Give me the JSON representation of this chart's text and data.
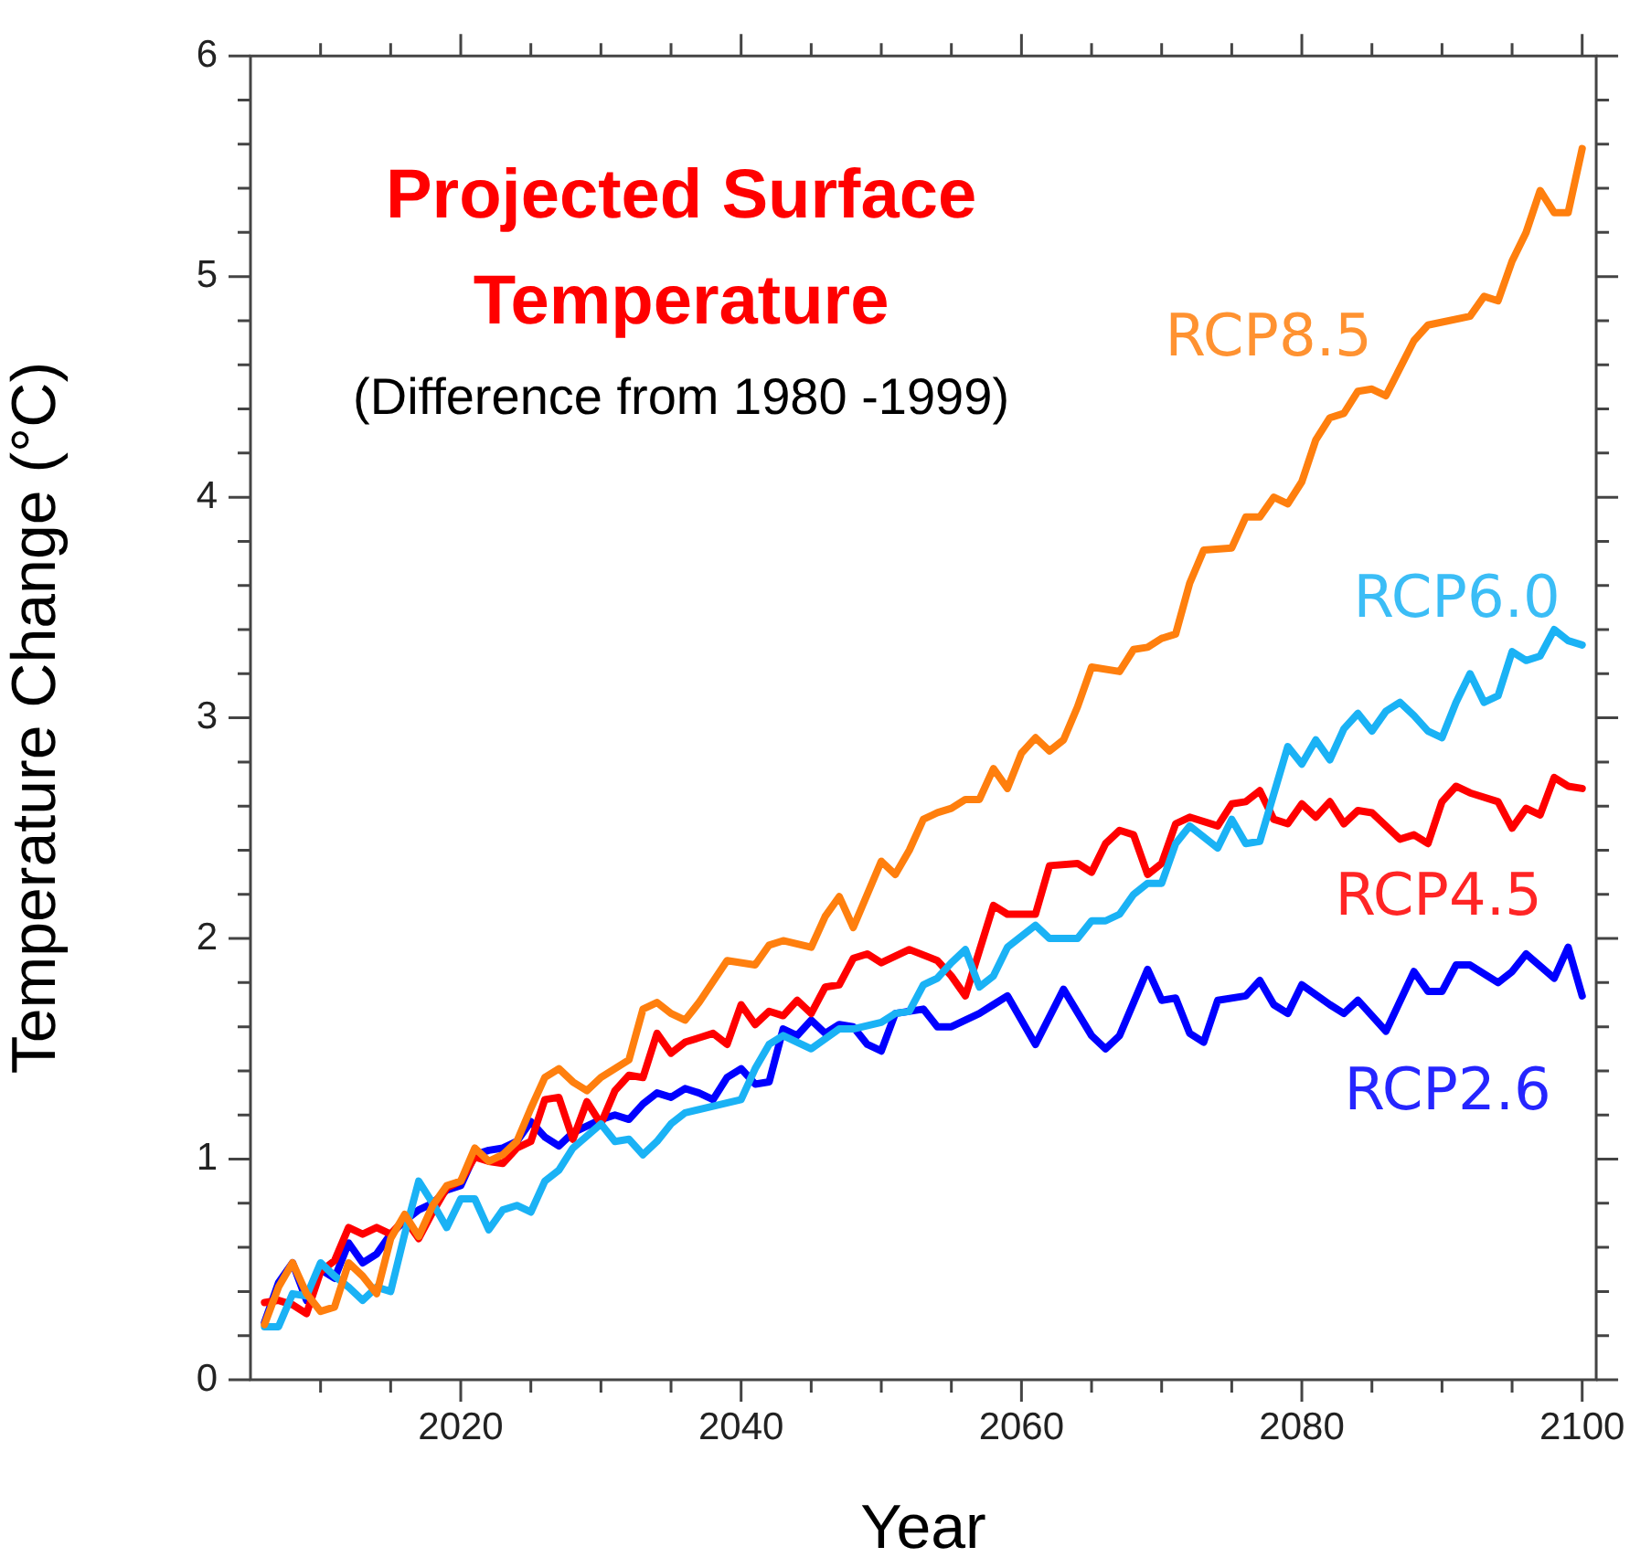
{
  "chart_data": {
    "type": "line",
    "title": "Projected Surface Temperature",
    "subtitle": "(Difference from 1980 -1999)",
    "xlabel": "Year",
    "ylabel": "Temperature Change (°C)",
    "xlim": [
      2005,
      2101
    ],
    "ylim": [
      0,
      6
    ],
    "xticks": [
      {
        "value": 2010,
        "label": null
      },
      {
        "value": 2015,
        "label": null
      },
      2020,
      {
        "value": 2025,
        "label": null
      },
      {
        "value": 2030,
        "label": null
      },
      {
        "value": 2035,
        "label": null
      },
      2040,
      {
        "value": 2045,
        "label": null
      },
      {
        "value": 2050,
        "label": null
      },
      {
        "value": 2055,
        "label": null
      },
      2060,
      {
        "value": 2065,
        "label": null
      },
      {
        "value": 2070,
        "label": null
      },
      {
        "value": 2075,
        "label": null
      },
      2080,
      {
        "value": 2085,
        "label": null
      },
      {
        "value": 2090,
        "label": null
      },
      {
        "value": 2095,
        "label": null
      },
      2100
    ],
    "yticks": [
      0,
      {
        "value": 0.2,
        "label": null
      },
      {
        "value": 0.4,
        "label": null
      },
      {
        "value": 0.6,
        "label": null
      },
      {
        "value": 0.8,
        "label": null
      },
      1,
      {
        "value": 1.2,
        "label": null
      },
      {
        "value": 1.4,
        "label": null
      },
      {
        "value": 1.6,
        "label": null
      },
      {
        "value": 1.8,
        "label": null
      },
      2,
      {
        "value": 2.2,
        "label": null
      },
      {
        "value": 2.4,
        "label": null
      },
      {
        "value": 2.6,
        "label": null
      },
      {
        "value": 2.8,
        "label": null
      },
      3,
      {
        "value": 3.2,
        "label": null
      },
      {
        "value": 3.4,
        "label": null
      },
      {
        "value": 3.6,
        "label": null
      },
      {
        "value": 3.8,
        "label": null
      },
      4,
      {
        "value": 4.2,
        "label": null
      },
      {
        "value": 4.4,
        "label": null
      },
      {
        "value": 4.6,
        "label": null
      },
      {
        "value": 4.8,
        "label": null
      },
      5,
      {
        "value": 5.2,
        "label": null
      },
      {
        "value": 5.4,
        "label": null
      },
      {
        "value": 5.6,
        "label": null
      },
      {
        "value": 5.8,
        "label": null
      },
      6
    ],
    "legend": false,
    "marker": "none",
    "line_style": "solid",
    "series": [
      {
        "name": "RCP8.5",
        "color": "#ff7f0e",
        "x": [
          2006,
          2007,
          2008,
          2009,
          2010,
          2011,
          2012,
          2013,
          2014,
          2015,
          2016,
          2017,
          2018,
          2019,
          2020,
          2021,
          2022,
          2023,
          2024,
          2025,
          2026,
          2027,
          2028,
          2029,
          2030,
          2032,
          2033,
          2034,
          2035,
          2036,
          2037,
          2039,
          2041,
          2042,
          2043,
          2045,
          2046,
          2047,
          2048,
          2050,
          2051,
          2052,
          2053,
          2054,
          2055,
          2056,
          2057,
          2058,
          2059,
          2060,
          2061,
          2062,
          2063,
          2064,
          2065,
          2067,
          2068,
          2069,
          2070,
          2071,
          2072,
          2073,
          2075,
          2076,
          2077,
          2078,
          2079,
          2080,
          2081,
          2082,
          2083,
          2084,
          2085,
          2086,
          2088,
          2089,
          2092,
          2093,
          2094,
          2095,
          2096,
          2097,
          2098,
          2099,
          2100
        ],
        "values": [
          0.25,
          0.42,
          0.53,
          0.39,
          0.31,
          0.33,
          0.53,
          0.47,
          0.39,
          0.64,
          0.75,
          0.65,
          0.79,
          0.88,
          0.9,
          1.05,
          0.99,
          1.02,
          1.08,
          1.23,
          1.37,
          1.41,
          1.35,
          1.31,
          1.37,
          1.45,
          1.68,
          1.71,
          1.66,
          1.63,
          1.71,
          1.9,
          1.88,
          1.97,
          1.99,
          1.96,
          2.1,
          2.19,
          2.05,
          2.35,
          2.29,
          2.4,
          2.54,
          2.57,
          2.59,
          2.63,
          2.63,
          2.77,
          2.68,
          2.84,
          2.91,
          2.85,
          2.9,
          3.05,
          3.23,
          3.21,
          3.31,
          3.32,
          3.36,
          3.38,
          3.61,
          3.76,
          3.77,
          3.91,
          3.91,
          4.0,
          3.97,
          4.07,
          4.26,
          4.36,
          4.38,
          4.48,
          4.49,
          4.46,
          4.71,
          4.78,
          4.82,
          4.91,
          4.89,
          5.07,
          5.2,
          5.39,
          5.29,
          5.29,
          5.58
        ]
      },
      {
        "name": "RCP6.0",
        "color": "#1ab2f5",
        "x": [
          2006,
          2007,
          2008,
          2009,
          2010,
          2011,
          2012,
          2013,
          2014,
          2015,
          2016,
          2017,
          2018,
          2019,
          2020,
          2021,
          2022,
          2023,
          2024,
          2025,
          2026,
          2027,
          2028,
          2030,
          2031,
          2032,
          2033,
          2034,
          2035,
          2036,
          2038,
          2040,
          2041,
          2042,
          2043,
          2045,
          2047,
          2048,
          2050,
          2051,
          2052,
          2053,
          2054,
          2055,
          2056,
          2057,
          2058,
          2059,
          2061,
          2062,
          2064,
          2065,
          2066,
          2067,
          2068,
          2069,
          2070,
          2071,
          2072,
          2074,
          2075,
          2076,
          2077,
          2079,
          2080,
          2081,
          2082,
          2083,
          2084,
          2085,
          2086,
          2087,
          2088,
          2089,
          2090,
          2091,
          2092,
          2093,
          2094,
          2095,
          2096,
          2097,
          2098,
          2099,
          2100
        ],
        "values": [
          0.24,
          0.24,
          0.39,
          0.38,
          0.53,
          0.47,
          0.42,
          0.36,
          0.42,
          0.4,
          0.66,
          0.9,
          0.8,
          0.69,
          0.82,
          0.82,
          0.68,
          0.77,
          0.79,
          0.76,
          0.9,
          0.95,
          1.05,
          1.16,
          1.08,
          1.09,
          1.02,
          1.08,
          1.16,
          1.21,
          1.24,
          1.27,
          1.41,
          1.52,
          1.56,
          1.5,
          1.59,
          1.59,
          1.62,
          1.66,
          1.67,
          1.79,
          1.82,
          1.89,
          1.95,
          1.78,
          1.83,
          1.96,
          2.06,
          2.0,
          2.0,
          2.08,
          2.08,
          2.11,
          2.2,
          2.25,
          2.25,
          2.43,
          2.51,
          2.41,
          2.54,
          2.43,
          2.44,
          2.87,
          2.79,
          2.9,
          2.81,
          2.95,
          3.02,
          2.94,
          3.03,
          3.07,
          3.01,
          2.94,
          2.91,
          3.07,
          3.2,
          3.07,
          3.1,
          3.3,
          3.26,
          3.28,
          3.4,
          3.35,
          3.33
        ]
      },
      {
        "name": "RCP4.5",
        "color": "#ff0000",
        "x": [
          2006,
          2007,
          2008,
          2009,
          2010,
          2011,
          2012,
          2013,
          2014,
          2015,
          2016,
          2017,
          2018,
          2019,
          2020,
          2021,
          2022,
          2023,
          2024,
          2025,
          2026,
          2027,
          2028,
          2029,
          2030,
          2031,
          2032,
          2033,
          2034,
          2035,
          2036,
          2037,
          2038,
          2039,
          2040,
          2041,
          2042,
          2043,
          2044,
          2045,
          2046,
          2047,
          2048,
          2049,
          2050,
          2052,
          2054,
          2055,
          2056,
          2058,
          2059,
          2061,
          2062,
          2064,
          2065,
          2066,
          2067,
          2068,
          2069,
          2070,
          2071,
          2072,
          2074,
          2075,
          2076,
          2077,
          2078,
          2079,
          2080,
          2081,
          2082,
          2083,
          2084,
          2085,
          2087,
          2088,
          2089,
          2090,
          2091,
          2092,
          2094,
          2095,
          2096,
          2097,
          2098,
          2099,
          2100
        ],
        "values": [
          0.35,
          0.36,
          0.34,
          0.3,
          0.49,
          0.54,
          0.69,
          0.66,
          0.69,
          0.66,
          0.73,
          0.64,
          0.76,
          0.87,
          0.9,
          1.01,
          0.99,
          0.98,
          1.05,
          1.08,
          1.27,
          1.28,
          1.09,
          1.26,
          1.16,
          1.31,
          1.38,
          1.37,
          1.57,
          1.48,
          1.53,
          1.55,
          1.57,
          1.52,
          1.7,
          1.61,
          1.67,
          1.65,
          1.72,
          1.66,
          1.78,
          1.79,
          1.91,
          1.93,
          1.89,
          1.95,
          1.9,
          1.83,
          1.74,
          2.15,
          2.11,
          2.11,
          2.33,
          2.34,
          2.3,
          2.43,
          2.49,
          2.47,
          2.29,
          2.34,
          2.52,
          2.55,
          2.51,
          2.61,
          2.62,
          2.67,
          2.54,
          2.52,
          2.61,
          2.55,
          2.62,
          2.52,
          2.58,
          2.57,
          2.45,
          2.47,
          2.43,
          2.62,
          2.69,
          2.66,
          2.62,
          2.5,
          2.59,
          2.56,
          2.73,
          2.69,
          2.68
        ]
      },
      {
        "name": "RCP2.6",
        "color": "#0000ff",
        "x": [
          2006,
          2007,
          2008,
          2009,
          2010,
          2011,
          2012,
          2013,
          2014,
          2015,
          2016,
          2017,
          2018,
          2019,
          2020,
          2021,
          2022,
          2023,
          2024,
          2025,
          2026,
          2027,
          2028,
          2029,
          2030,
          2031,
          2032,
          2033,
          2034,
          2035,
          2036,
          2037,
          2038,
          2039,
          2040,
          2041,
          2042,
          2043,
          2044,
          2045,
          2046,
          2047,
          2048,
          2049,
          2050,
          2051,
          2053,
          2054,
          2055,
          2057,
          2058,
          2059,
          2061,
          2063,
          2065,
          2066,
          2067,
          2068,
          2069,
          2070,
          2071,
          2072,
          2073,
          2074,
          2076,
          2077,
          2078,
          2079,
          2080,
          2082,
          2083,
          2084,
          2086,
          2088,
          2089,
          2090,
          2091,
          2092,
          2094,
          2095,
          2096,
          2098,
          2099,
          2100
        ],
        "values": [
          0.26,
          0.44,
          0.53,
          0.36,
          0.5,
          0.46,
          0.62,
          0.53,
          0.57,
          0.66,
          0.72,
          0.77,
          0.8,
          0.86,
          0.88,
          1.02,
          1.04,
          1.05,
          1.08,
          1.17,
          1.1,
          1.06,
          1.12,
          1.15,
          1.18,
          1.2,
          1.18,
          1.25,
          1.3,
          1.28,
          1.32,
          1.3,
          1.27,
          1.37,
          1.41,
          1.34,
          1.35,
          1.59,
          1.56,
          1.63,
          1.57,
          1.61,
          1.6,
          1.52,
          1.49,
          1.66,
          1.68,
          1.6,
          1.6,
          1.66,
          1.7,
          1.74,
          1.52,
          1.77,
          1.56,
          1.5,
          1.56,
          1.71,
          1.86,
          1.72,
          1.73,
          1.57,
          1.53,
          1.72,
          1.74,
          1.81,
          1.7,
          1.66,
          1.79,
          1.7,
          1.66,
          1.72,
          1.58,
          1.85,
          1.76,
          1.76,
          1.88,
          1.88,
          1.8,
          1.85,
          1.93,
          1.82,
          1.96,
          1.74
        ]
      }
    ]
  }
}
